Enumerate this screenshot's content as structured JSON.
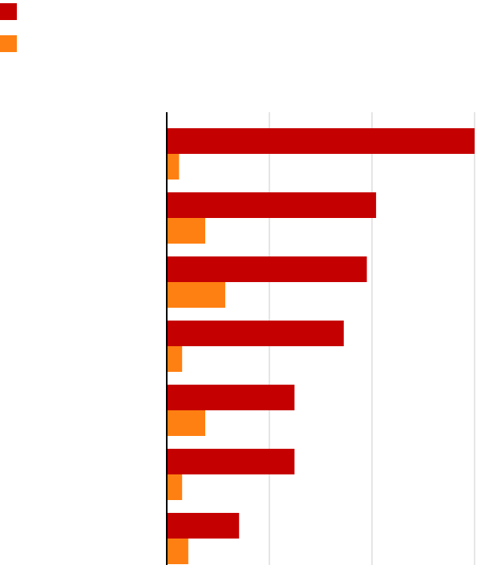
{
  "colors": {
    "series_a": "#c50000",
    "series_b": "#ff8012",
    "gridline": "#cccccc",
    "axis": "#000000"
  },
  "chart_data": {
    "type": "bar",
    "orientation": "horizontal",
    "categories": [
      "",
      "",
      "",
      "",
      "",
      "",
      ""
    ],
    "series": [
      {
        "color": "#c50000",
        "values": [
          100,
          68,
          65,
          57.5,
          41.5,
          41.5,
          23.5
        ]
      },
      {
        "color": "#ff8012",
        "values": [
          4,
          12.5,
          19,
          5,
          12.5,
          5,
          7
        ]
      }
    ],
    "xlim": [
      0,
      100
    ],
    "gridlines": [
      0,
      33.33,
      66.67,
      100
    ],
    "grid": true,
    "legend": "top-left",
    "title": "",
    "xlabel": "",
    "ylabel": ""
  }
}
